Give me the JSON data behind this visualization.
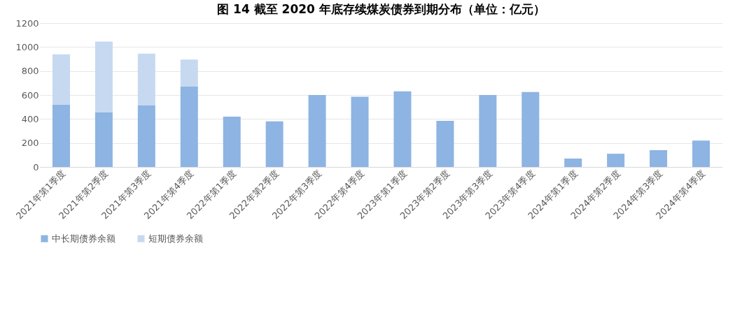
{
  "chart_data": {
    "type": "bar",
    "stacked": true,
    "title": "图 14   截至 2020 年底存续煤炭债券到期分布（单位：亿元）",
    "categories": [
      "2021年第1季度",
      "2021年第2季度",
      "2021年第3季度",
      "2021年第4季度",
      "2022年第1季度",
      "2022年第2季度",
      "2022年第3季度",
      "2022年第4季度",
      "2023年第1季度",
      "2023年第2季度",
      "2023年第3季度",
      "2023年第4季度",
      "2024年第1季度",
      "2024年第2季度",
      "2024年第3季度",
      "2024年第4季度"
    ],
    "series": [
      {
        "name": "中长期债券余额",
        "color": "#8db4e2",
        "values": [
          520,
          455,
          515,
          670,
          420,
          380,
          600,
          585,
          630,
          385,
          600,
          625,
          70,
          110,
          140,
          220
        ]
      },
      {
        "name": "短期债券余额",
        "color": "#c6d9f1",
        "values": [
          420,
          590,
          430,
          225,
          null,
          null,
          null,
          null,
          null,
          null,
          null,
          null,
          null,
          null,
          null,
          null
        ]
      }
    ],
    "ylim": [
      0,
      1200
    ],
    "yticks": [
      0,
      200,
      400,
      600,
      800,
      1000,
      1200
    ],
    "grid": "y",
    "legend": "bottom"
  }
}
